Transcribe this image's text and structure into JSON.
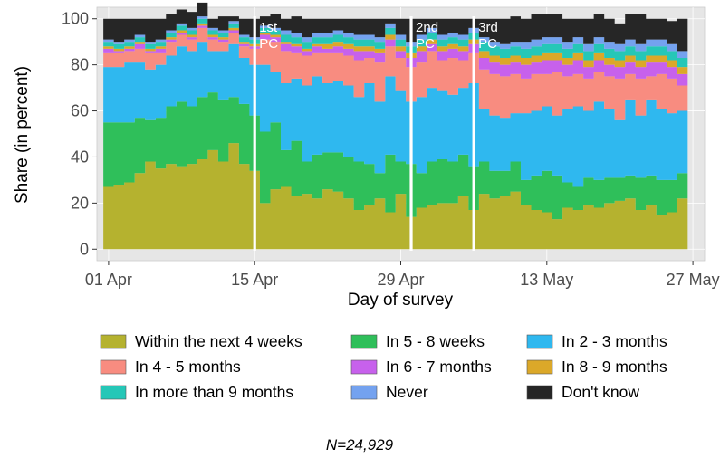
{
  "chart_data": {
    "type": "area",
    "title": "",
    "xlabel": "Day of survey",
    "ylabel": "Share (in percent)",
    "ylim": [
      0,
      100
    ],
    "xlim": [
      "2020-04-01",
      "2020-05-27"
    ],
    "x_ticks": [
      "01 Apr",
      "15 Apr",
      "29 Apr",
      "13 May",
      "27 May"
    ],
    "y_ticks": [
      "0",
      "20",
      "40",
      "60",
      "80",
      "100"
    ],
    "grid": true,
    "stacked": true,
    "legend_position": "bottom",
    "series": [
      {
        "name": "Within the next 4 weeks",
        "color": "#b5b22f",
        "values": [
          27,
          28,
          29,
          33,
          38,
          35,
          37,
          36,
          37,
          39,
          43,
          38,
          46,
          37,
          34,
          20,
          26,
          27,
          23,
          24,
          22,
          26,
          25,
          22,
          17,
          19,
          22,
          16,
          24,
          14,
          18,
          19,
          20,
          20,
          23,
          17,
          24,
          22,
          23,
          25,
          19,
          17,
          16,
          13,
          18,
          17,
          19,
          18,
          20,
          21,
          22,
          17,
          19,
          15,
          16,
          22
        ]
      },
      {
        "name": "In 5 - 8 weeks",
        "color": "#2fbf5a",
        "values": [
          28,
          27,
          26,
          24,
          18,
          22,
          25,
          28,
          25,
          27,
          25,
          27,
          20,
          26,
          24,
          31,
          29,
          16,
          24,
          14,
          19,
          16,
          17,
          18,
          21,
          18,
          11,
          25,
          14,
          23,
          15,
          19,
          19,
          18,
          18,
          19,
          14,
          12,
          11,
          13,
          11,
          15,
          18,
          19,
          11,
          10,
          12,
          12,
          11,
          10,
          10,
          14,
          13,
          15,
          14,
          11
        ]
      },
      {
        "name": "In 2 - 3 months",
        "color": "#2fb8ef",
        "values": [
          24,
          24,
          26,
          24,
          22,
          23,
          22,
          24,
          24,
          24,
          18,
          21,
          23,
          20,
          22,
          29,
          22,
          29,
          27,
          33,
          34,
          30,
          31,
          31,
          28,
          35,
          31,
          34,
          31,
          27,
          33,
          32,
          30,
          29,
          29,
          36,
          23,
          24,
          23,
          21,
          29,
          28,
          28,
          26,
          32,
          35,
          29,
          34,
          30,
          25,
          33,
          27,
          33,
          31,
          29,
          27
        ]
      },
      {
        "name": "In 4 - 5 months",
        "color": "#f88c80",
        "values": [
          6,
          6,
          5,
          6,
          7,
          5,
          6,
          5,
          5,
          6,
          5,
          4,
          5,
          5,
          7,
          11,
          13,
          14,
          11,
          13,
          10,
          13,
          12,
          13,
          16,
          11,
          17,
          13,
          14,
          15,
          15,
          16,
          13,
          16,
          12,
          13,
          17,
          18,
          18,
          17,
          15,
          16,
          14,
          19,
          14,
          14,
          14,
          13,
          14,
          18,
          11,
          16,
          10,
          15,
          15,
          11
        ]
      },
      {
        "name": "In 6 - 7 months",
        "color": "#c761ec",
        "values": [
          2,
          1,
          1,
          2,
          1,
          2,
          1,
          1,
          1,
          1,
          1,
          1,
          1,
          1,
          1,
          2,
          2,
          3,
          3,
          2,
          3,
          2,
          3,
          3,
          4,
          3,
          4,
          3,
          3,
          4,
          5,
          3,
          4,
          4,
          4,
          4,
          5,
          5,
          5,
          5,
          6,
          5,
          6,
          5,
          5,
          6,
          5,
          5,
          5,
          5,
          5,
          5,
          6,
          5,
          5,
          5
        ]
      },
      {
        "name": "In 8 - 9 months",
        "color": "#dba829",
        "values": [
          1,
          1,
          1,
          1,
          1,
          1,
          1,
          1,
          1,
          1,
          1,
          1,
          1,
          1,
          1,
          1,
          1,
          1,
          1,
          1,
          1,
          2,
          2,
          2,
          2,
          2,
          2,
          2,
          2,
          2,
          2,
          2,
          2,
          2,
          2,
          2,
          3,
          3,
          3,
          3,
          3,
          3,
          3,
          3,
          3,
          3,
          3,
          3,
          3,
          3,
          3,
          3,
          3,
          3,
          3,
          3
        ]
      },
      {
        "name": "In more than 9 months",
        "color": "#25c7b7",
        "values": [
          2,
          2,
          2,
          2,
          2,
          2,
          2,
          2,
          2,
          2,
          2,
          2,
          2,
          2,
          2,
          2,
          2,
          3,
          3,
          3,
          3,
          3,
          3,
          3,
          3,
          3,
          3,
          3,
          3,
          3,
          3,
          3,
          3,
          3,
          3,
          3,
          4,
          4,
          4,
          4,
          4,
          4,
          4,
          4,
          4,
          4,
          4,
          4,
          4,
          4,
          4,
          4,
          4,
          4,
          4,
          4
        ]
      },
      {
        "name": "Never",
        "color": "#74a2ef",
        "values": [
          1,
          1,
          1,
          1,
          1,
          1,
          1,
          1,
          1,
          1,
          1,
          1,
          1,
          1,
          1,
          1,
          1,
          2,
          2,
          2,
          2,
          2,
          2,
          2,
          2,
          2,
          2,
          2,
          2,
          2,
          2,
          2,
          2,
          2,
          2,
          2,
          2,
          2,
          2,
          2,
          3,
          3,
          3,
          3,
          3,
          3,
          3,
          3,
          3,
          3,
          3,
          3,
          3,
          3,
          3,
          3
        ]
      },
      {
        "name": "Don't know",
        "color": "#262626",
        "values": [
          9,
          10,
          9,
          7,
          10,
          9,
          7,
          6,
          7,
          6,
          4,
          6,
          2,
          7,
          8,
          4,
          6,
          5,
          7,
          8,
          6,
          6,
          5,
          6,
          7,
          7,
          8,
          2,
          7,
          10,
          7,
          4,
          7,
          6,
          7,
          4,
          8,
          10,
          11,
          11,
          10,
          11,
          10,
          10,
          10,
          8,
          11,
          10,
          10,
          9,
          11,
          13,
          9,
          9,
          10,
          14
        ]
      }
    ],
    "annotations": [
      {
        "x": "2020-04-15",
        "label": "1st PC",
        "lines": [
          "1st",
          "PC"
        ]
      },
      {
        "x": "2020-04-30",
        "label": "2nd PC",
        "lines": [
          "2nd",
          "PC"
        ]
      },
      {
        "x": "2020-05-06",
        "label": "3rd PC",
        "lines": [
          "3rd",
          "PC"
        ]
      }
    ],
    "caption": "N=24,929"
  }
}
